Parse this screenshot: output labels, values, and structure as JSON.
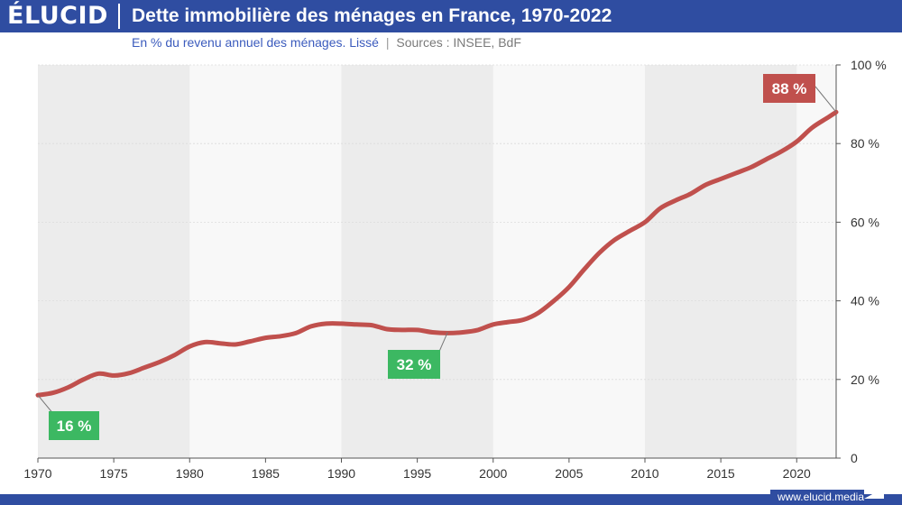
{
  "brand": {
    "logo": "ÉLUCID",
    "footer": "www.elucid.media"
  },
  "header": {
    "title": "Dette immobilière des ménages en France, 1970-2022",
    "subtitle_main": "En % du revenu annuel des ménages. Lissé",
    "subtitle_sep": "|",
    "subtitle_sources": "Sources : INSEE, BdF"
  },
  "colors": {
    "brand": "#2f4da1",
    "line": "#c0504d",
    "green": "#3cb862",
    "red_label": "#c0504d"
  },
  "chart_data": {
    "type": "line",
    "title": "Dette immobilière des ménages en France, 1970-2022",
    "xlabel": "",
    "ylabel": "",
    "xlim": [
      1970,
      2022.6
    ],
    "ylim": [
      0,
      100
    ],
    "x_ticks": [
      1970,
      1975,
      1980,
      1985,
      1990,
      1995,
      2000,
      2005,
      2010,
      2015,
      2020
    ],
    "y_ticks": [
      0,
      20,
      40,
      60,
      80,
      100
    ],
    "y_tick_labels": [
      "0",
      "20 %",
      "40 %",
      "60 %",
      "80 %",
      "100 %"
    ],
    "series": [
      {
        "name": "Dette immobilière (% du revenu annuel)",
        "x": [
          1970,
          1971,
          1972,
          1973,
          1974,
          1975,
          1976,
          1977,
          1978,
          1979,
          1980,
          1981,
          1982,
          1983,
          1984,
          1985,
          1986,
          1987,
          1988,
          1989,
          1990,
          1991,
          1992,
          1993,
          1994,
          1995,
          1996,
          1997,
          1998,
          1999,
          2000,
          2001,
          2002,
          2003,
          2004,
          2005,
          2006,
          2007,
          2008,
          2009,
          2010,
          2011,
          2012,
          2013,
          2014,
          2015,
          2016,
          2017,
          2018,
          2019,
          2020,
          2021,
          2022,
          2022.6
        ],
        "values": [
          16,
          16.6,
          18,
          20,
          21.5,
          21,
          21.6,
          23,
          24.4,
          26.2,
          28.4,
          29.5,
          29.2,
          28.9,
          29.7,
          30.6,
          31,
          31.8,
          33.5,
          34.2,
          34.2,
          34,
          33.8,
          32.8,
          32.6,
          32.6,
          32,
          31.8,
          32,
          32.6,
          34,
          34.6,
          35.2,
          37,
          40,
          43.5,
          48,
          52.2,
          55.5,
          57.8,
          60,
          63.5,
          65.5,
          67.2,
          69.5,
          71,
          72.5,
          74,
          76,
          78,
          80.5,
          84,
          86.5,
          88
        ]
      }
    ],
    "annotations": [
      {
        "label": "16 %",
        "x": 1970,
        "y": 16,
        "color": "green"
      },
      {
        "label": "32 %",
        "x": 1997,
        "y": 32,
        "color": "green"
      },
      {
        "label": "88 %",
        "x": 2022.6,
        "y": 88,
        "color": "red_label"
      }
    ]
  }
}
